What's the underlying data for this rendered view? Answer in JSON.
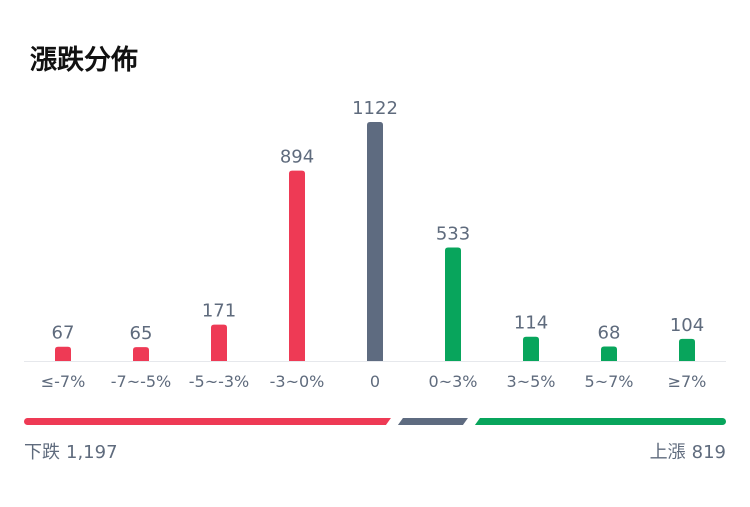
{
  "title": "漲跌分佈",
  "colors": {
    "down": "#ee3a55",
    "flat": "#5e6b80",
    "up": "#08a55c",
    "baseline": "#e6e8ec"
  },
  "chart_data": {
    "type": "bar",
    "categories": [
      "≤-7%",
      "-7~-5%",
      "-5~-3%",
      "-3~0%",
      "0",
      "0~3%",
      "3~5%",
      "5~7%",
      "≥7%"
    ],
    "values": [
      67,
      65,
      171,
      894,
      1122,
      533,
      114,
      68,
      104
    ],
    "value_labels": [
      "67",
      "65",
      "171",
      "894",
      "1122",
      "533",
      "114",
      "68",
      "104"
    ],
    "groups": [
      "down",
      "down",
      "down",
      "down",
      "flat",
      "up",
      "up",
      "up",
      "up"
    ],
    "ylim": [
      0,
      1122
    ],
    "grid": false,
    "breadth_bar": {
      "down": 1197,
      "flat": 1122,
      "up": 819
    }
  },
  "summary": {
    "down_label": "下跌",
    "down_value": "1,197",
    "up_label": "上漲",
    "up_value": "819"
  }
}
